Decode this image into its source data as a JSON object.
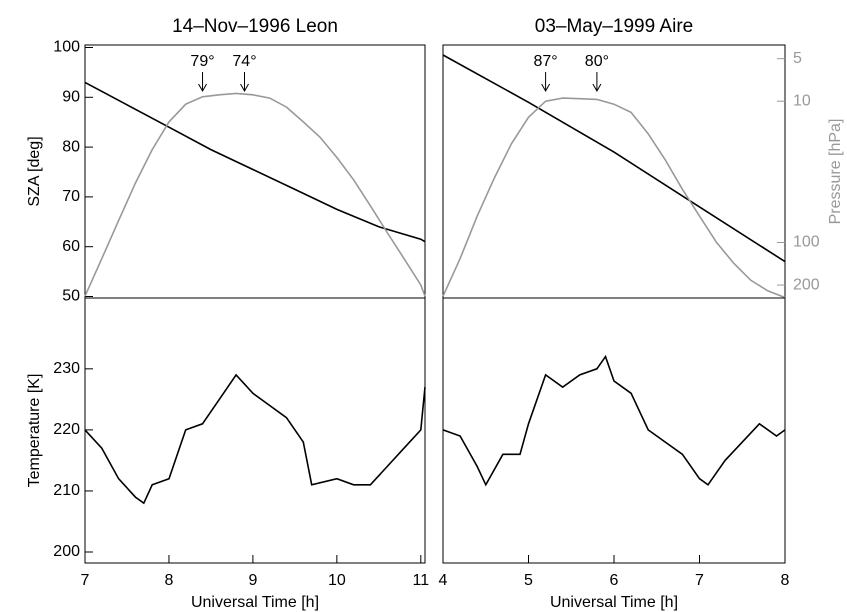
{
  "chart_data": [
    {
      "type": "line",
      "title": "14–Nov–1996 Leon",
      "y_label": "SZA [deg]",
      "xlim": [
        7,
        11.05
      ],
      "ylim": [
        49.7,
        100.5
      ],
      "yticks": [
        50,
        60,
        70,
        80,
        90,
        100
      ],
      "y2lim": [
        4,
        247
      ],
      "y2_log": true,
      "y2_inverted": true,
      "series": [
        {
          "color": "#000000",
          "x": [
            7,
            7.5,
            8,
            8.5,
            9,
            9.5,
            10,
            10.5,
            11,
            11.05
          ],
          "values": [
            93,
            88.5,
            84,
            79.5,
            75.5,
            71.5,
            67.5,
            64,
            61.5,
            61
          ]
        },
        {
          "color": "#999999",
          "axis": "y2",
          "x": [
            7,
            7.2,
            7.4,
            7.6,
            7.8,
            8,
            8.2,
            8.4,
            8.6,
            8.8,
            9,
            9.2,
            9.4,
            9.6,
            9.8,
            10,
            10.2,
            10.4,
            10.6,
            10.8,
            11,
            11.05
          ],
          "values": [
            240,
            130,
            70,
            38,
            22,
            14,
            10.5,
            9.3,
            9,
            8.8,
            9,
            9.5,
            11,
            14,
            18,
            25,
            36,
            55,
            85,
            130,
            200,
            240
          ]
        }
      ],
      "annotations": [
        {
          "text": "79°",
          "x": 8.4
        },
        {
          "text": "74°",
          "x": 8.9
        }
      ]
    },
    {
      "type": "line",
      "title": "03–May–1999 Aire",
      "y2_label": "Pressure [hPa]",
      "xlim": [
        4,
        8
      ],
      "ylim": [
        49.7,
        100.5
      ],
      "y2lim": [
        4,
        247
      ],
      "y2_log": true,
      "y2_inverted": true,
      "y2ticks": [
        5,
        10,
        100,
        200
      ],
      "series": [
        {
          "color": "#000000",
          "x": [
            4,
            5,
            6,
            7,
            8
          ],
          "values": [
            98.5,
            89,
            79,
            68,
            57
          ]
        },
        {
          "color": "#999999",
          "axis": "y2",
          "x": [
            4,
            4.2,
            4.4,
            4.6,
            4.8,
            5,
            5.2,
            5.4,
            5.6,
            5.8,
            6,
            6.2,
            6.4,
            6.6,
            6.8,
            7,
            7.2,
            7.4,
            7.6,
            7.8,
            8
          ],
          "values": [
            240,
            130,
            65,
            35,
            20,
            13,
            10,
            9.5,
            9.6,
            9.7,
            10.5,
            12,
            17,
            26,
            42,
            65,
            100,
            140,
            185,
            220,
            245
          ]
        }
      ],
      "annotations": [
        {
          "text": "87°",
          "x": 5.2
        },
        {
          "text": "80°",
          "x": 5.8
        }
      ]
    },
    {
      "type": "line",
      "x_label": "Universal Time [h]",
      "y_label": "Temperature [K]",
      "xlim": [
        7,
        11.05
      ],
      "xticks": [
        7,
        8,
        9,
        10,
        11
      ],
      "ylim": [
        198.2,
        241.6
      ],
      "yticks": [
        200,
        210,
        220,
        230
      ],
      "series": [
        {
          "color": "#000000",
          "x": [
            7,
            7.2,
            7.4,
            7.6,
            7.7,
            7.8,
            8,
            8.2,
            8.4,
            8.6,
            8.8,
            9,
            9.2,
            9.4,
            9.6,
            9.7,
            10,
            10.2,
            10.4,
            10.6,
            10.8,
            11,
            11.05
          ],
          "values": [
            220,
            217,
            212,
            209,
            208,
            211,
            212,
            220,
            221,
            225,
            229,
            226,
            224,
            222,
            218,
            211,
            212,
            211,
            211,
            214,
            217,
            220,
            227
          ]
        }
      ]
    },
    {
      "type": "line",
      "x_label": "Universal Time [h]",
      "xlim": [
        4,
        8
      ],
      "xticks": [
        4,
        5,
        6,
        7,
        8
      ],
      "ylim": [
        198.2,
        241.6
      ],
      "series": [
        {
          "color": "#000000",
          "x": [
            4,
            4.2,
            4.4,
            4.5,
            4.7,
            4.9,
            5,
            5.2,
            5.4,
            5.6,
            5.8,
            5.9,
            6,
            6.2,
            6.4,
            6.6,
            6.8,
            7,
            7.1,
            7.3,
            7.5,
            7.7,
            7.9,
            8
          ],
          "values": [
            220,
            219,
            214,
            211,
            216,
            216,
            221,
            229,
            227,
            229,
            230,
            232,
            228,
            226,
            220,
            218,
            216,
            212,
            211,
            215,
            218,
            221,
            219,
            220
          ]
        }
      ]
    }
  ]
}
